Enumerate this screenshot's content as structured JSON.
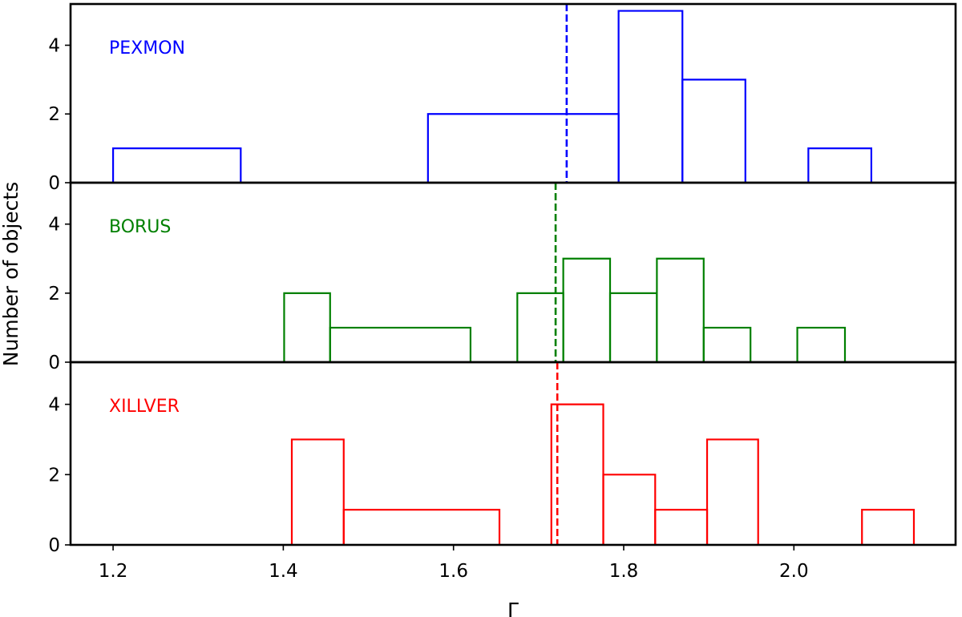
{
  "chart_data": {
    "type": "histogram",
    "shared_x": true,
    "xlabel": "Γ",
    "ylabel": "Number of objects",
    "xlim": [
      1.15,
      2.19
    ],
    "x_ticks": [
      "1.2",
      "1.4",
      "1.6",
      "1.8",
      "2.0"
    ],
    "x_tick_values": [
      1.2,
      1.4,
      1.6,
      1.8,
      2.0
    ],
    "y_ticks": [
      "0",
      "2",
      "4"
    ],
    "y_tick_values": [
      0,
      2,
      4
    ],
    "grid": false,
    "panels": [
      {
        "label": "PEXMON",
        "color": "#0000ff",
        "ylim": [
          0,
          5.2
        ],
        "edges": [
          1.2,
          1.35,
          1.57,
          1.794,
          1.869,
          1.943,
          2.017,
          2.091
        ],
        "counts": [
          1,
          0,
          2,
          5,
          3,
          0,
          1
        ],
        "mean_line": 1.733
      },
      {
        "label": "BORUS",
        "color": "#008000",
        "ylim": [
          0,
          5.2
        ],
        "edges": [
          1.401,
          1.455,
          1.62,
          1.675,
          1.729,
          1.784,
          1.839,
          1.894,
          1.949,
          2.004,
          2.06
        ],
        "counts": [
          2,
          1,
          0,
          2,
          3,
          2,
          3,
          1,
          0,
          1
        ],
        "mean_line": 1.72
      },
      {
        "label": "XILLVER",
        "color": "#ff0000",
        "ylim": [
          0,
          5.2
        ],
        "edges": [
          1.41,
          1.471,
          1.654,
          1.715,
          1.776,
          1.837,
          1.898,
          1.958,
          2.08,
          2.141
        ],
        "counts": [
          3,
          1,
          0,
          4,
          2,
          1,
          3,
          0,
          1
        ],
        "mean_line": 1.722
      }
    ]
  }
}
